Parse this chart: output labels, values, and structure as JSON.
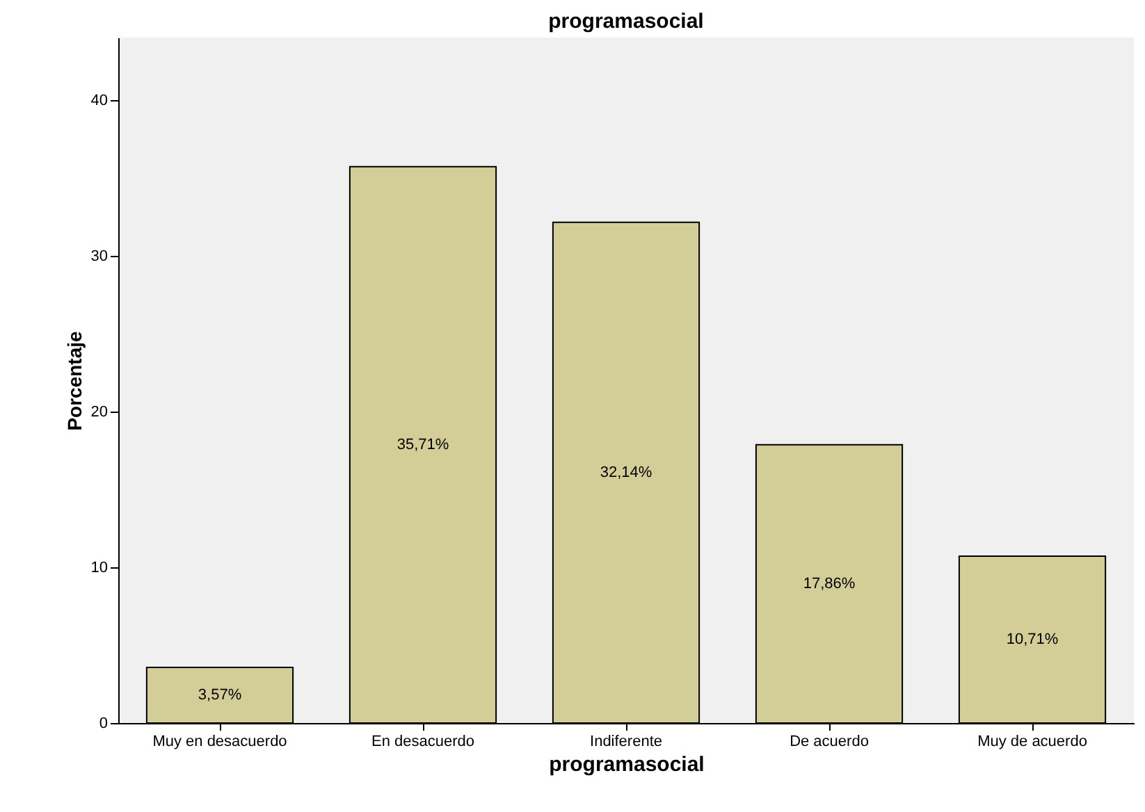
{
  "chart_data": {
    "type": "bar",
    "title": "programasocial",
    "xlabel": "programasocial",
    "ylabel": "Porcentaje",
    "categories": [
      "Muy en desacuerdo",
      "En desacuerdo",
      "Indiferente",
      "De acuerdo",
      "Muy de acuerdo"
    ],
    "values": [
      3.57,
      35.71,
      32.14,
      17.86,
      10.71
    ],
    "value_labels": [
      "3,57%",
      "35,71%",
      "32,14%",
      "17,86%",
      "10,71%"
    ],
    "color": "#d3ce97",
    "ylim": [
      0,
      44
    ],
    "yticks": [
      0,
      10,
      20,
      30,
      40
    ],
    "grid": false
  }
}
